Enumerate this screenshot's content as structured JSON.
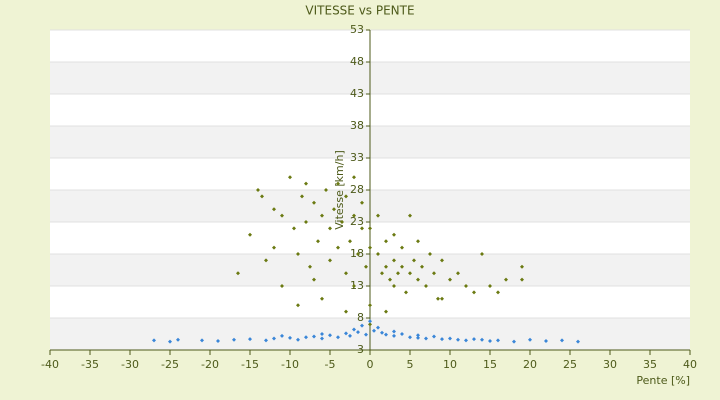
{
  "chart_data": {
    "type": "scatter",
    "title": "VITESSE vs PENTE",
    "x_label": "Pente [%]",
    "y_label": "Vitesse [km/h]",
    "xlim": [
      -40,
      40
    ],
    "xticks": [
      -40,
      -35,
      -30,
      -25,
      -20,
      -15,
      -10,
      -5,
      0,
      5,
      10,
      15,
      20,
      25,
      30,
      35,
      40
    ],
    "ylim": [
      3,
      53
    ],
    "yticks": [
      3,
      8,
      13,
      18,
      23,
      28,
      33,
      38,
      43,
      48,
      53
    ],
    "grid": true,
    "series": [
      {
        "color": "#6b7a12",
        "x": [
          -15,
          -14,
          -13.5,
          -13,
          -12,
          -11,
          -10,
          -9.5,
          -9,
          -8.5,
          -8,
          -7.5,
          -7,
          -6.5,
          -6,
          -5.5,
          -5,
          -5,
          -4.5,
          -4,
          -4,
          -3.5,
          -3,
          -3,
          -2.5,
          -2,
          -2,
          -1.5,
          -1,
          -1,
          -0.5,
          -9,
          -7,
          -11,
          -16.5,
          -6,
          -3,
          -12,
          -8,
          -2,
          1,
          1.5,
          2,
          2,
          2.5,
          3,
          3,
          3.5,
          4,
          4,
          4.5,
          5,
          5,
          5.5,
          6,
          6.5,
          7,
          7.5,
          8,
          8.5,
          9,
          10,
          11,
          12,
          13,
          14,
          15,
          16,
          17,
          19,
          19,
          3,
          6,
          9,
          2,
          1,
          0,
          0,
          0,
          0
        ],
        "values": [
          21,
          28,
          27,
          17,
          25,
          24,
          30,
          22,
          18,
          27,
          23,
          16,
          26,
          20,
          24,
          28,
          17,
          22,
          25,
          19,
          29,
          23,
          15,
          27,
          20,
          24,
          13,
          18,
          22,
          26,
          16,
          10,
          14,
          13,
          15,
          11,
          9,
          19,
          29,
          30,
          18,
          15,
          16,
          20,
          14,
          17,
          13,
          15,
          16,
          19,
          12,
          15,
          24,
          17,
          14,
          16,
          13,
          18,
          15,
          11,
          17,
          14,
          15,
          13,
          12,
          18,
          13,
          12,
          14,
          14,
          16,
          21,
          20,
          11,
          9,
          24,
          22,
          19,
          7,
          10
        ]
      },
      {
        "color": "#3a86d8",
        "x": [
          -27,
          -25,
          -24,
          -21,
          -19,
          -17,
          -15,
          -13,
          -12,
          -10,
          -9,
          -8,
          -7,
          -6,
          -5,
          -4,
          -3,
          -2.5,
          -2,
          -1.5,
          -1,
          -0.5,
          0,
          0.5,
          1,
          1.5,
          2,
          3,
          4,
          5,
          6,
          7,
          8,
          9,
          10,
          11,
          12,
          13,
          14,
          15,
          16,
          18,
          20,
          22,
          24,
          26,
          -11,
          -6,
          3,
          6
        ],
        "values": [
          4.5,
          4.3,
          4.6,
          4.5,
          4.4,
          4.6,
          4.7,
          4.5,
          4.8,
          4.9,
          4.6,
          5.0,
          5.1,
          4.8,
          5.3,
          5.0,
          5.6,
          5.2,
          6.2,
          5.8,
          6.8,
          5.4,
          7.5,
          6.0,
          6.5,
          5.7,
          5.4,
          5.2,
          5.5,
          5.0,
          4.9,
          4.8,
          5.1,
          4.7,
          4.8,
          4.6,
          4.5,
          4.7,
          4.6,
          4.4,
          4.5,
          4.3,
          4.6,
          4.4,
          4.5,
          4.3,
          5.2,
          5.5,
          5.9,
          5.3
        ]
      }
    ]
  }
}
